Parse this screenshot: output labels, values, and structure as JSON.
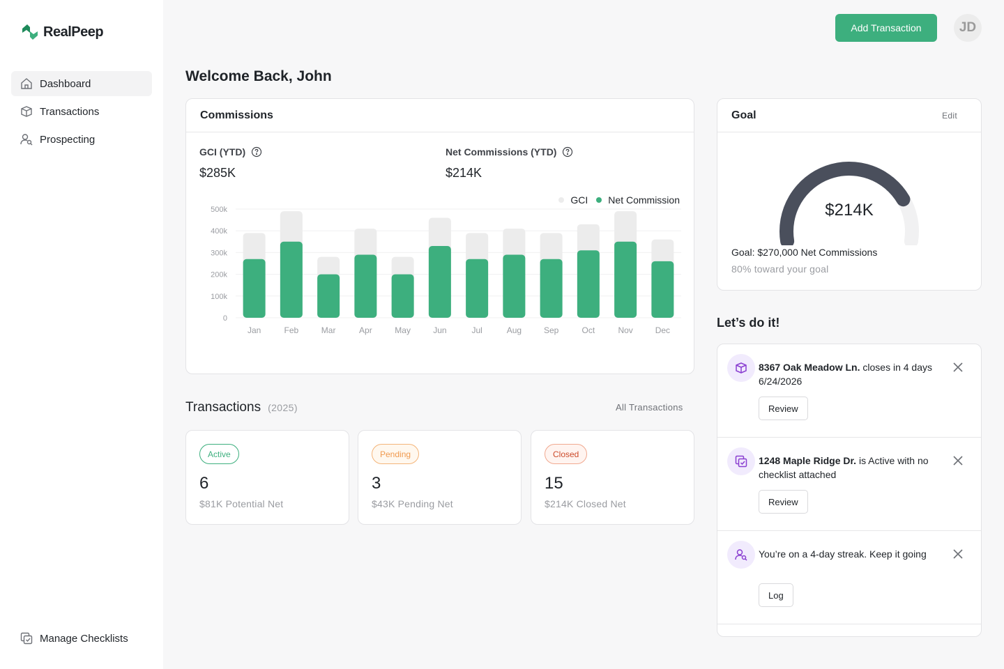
{
  "app": {
    "name": "RealPeep"
  },
  "sidebar": {
    "items": [
      {
        "label": "Dashboard",
        "icon": "home-icon",
        "active": true
      },
      {
        "label": "Transactions",
        "icon": "box-icon",
        "active": false
      },
      {
        "label": "Prospecting",
        "icon": "user-search-icon",
        "active": false
      }
    ],
    "bottom": {
      "label": "Manage Checklists",
      "icon": "checklist-icon"
    }
  },
  "header": {
    "add_button": "Add Transaction",
    "avatar_initials": "JD"
  },
  "welcome": "Welcome Back, John",
  "commissions": {
    "title": "Commissions",
    "gci_label": "GCI (YTD)",
    "gci_value": "$285K",
    "net_label": "Net Commissions (YTD)",
    "net_value": "$214K",
    "legend": {
      "gci": "GCI",
      "net": "Net Commission"
    }
  },
  "chart_data": {
    "type": "bar",
    "categories": [
      "Jan",
      "Feb",
      "Mar",
      "Apr",
      "May",
      "Jun",
      "Jul",
      "Aug",
      "Sep",
      "Oct",
      "Nov",
      "Dec"
    ],
    "series": [
      {
        "name": "GCI",
        "color": "#ececec",
        "values": [
          390,
          490,
          280,
          410,
          280,
          460,
          390,
          410,
          390,
          430,
          490,
          360
        ]
      },
      {
        "name": "Net Commission",
        "color": "#3daf7e",
        "values": [
          270,
          350,
          200,
          290,
          200,
          330,
          270,
          290,
          270,
          310,
          350,
          260
        ]
      }
    ],
    "yticks": [
      "500k",
      "400k",
      "300k",
      "200k",
      "100k",
      "0"
    ],
    "ylim": [
      0,
      500
    ],
    "grid": true,
    "legend_position": "top-right"
  },
  "goal": {
    "title": "Goal",
    "edit": "Edit",
    "value": "$214K",
    "progress": 0.8,
    "goal_text": "Goal: $270,000 Net Commissions",
    "progress_text": "80% toward your goal"
  },
  "transactions": {
    "title": "Transactions",
    "year": "(2025)",
    "all_link": "All Transactions",
    "cards": [
      {
        "status": "Active",
        "count": "6",
        "sub": "$81K Potential Net"
      },
      {
        "status": "Pending",
        "count": "3",
        "sub": "$43K Pending Net"
      },
      {
        "status": "Closed",
        "count": "15",
        "sub": "$214K Closed Net"
      }
    ]
  },
  "todo": {
    "title": "Let’s do it!",
    "items": [
      {
        "icon": "box-icon",
        "bold": "8367 Oak Meadow Ln.",
        "text": " closes in 4 days 6/24/2026",
        "button": "Review"
      },
      {
        "icon": "checklist-icon",
        "bold": "1248 Maple Ridge Dr.",
        "text": " is Active with no checklist attached",
        "button": "Review"
      },
      {
        "icon": "user-search-icon",
        "bold": "",
        "text": "You’re on a 4-day streak. Keep it going",
        "button": "Log"
      }
    ]
  }
}
